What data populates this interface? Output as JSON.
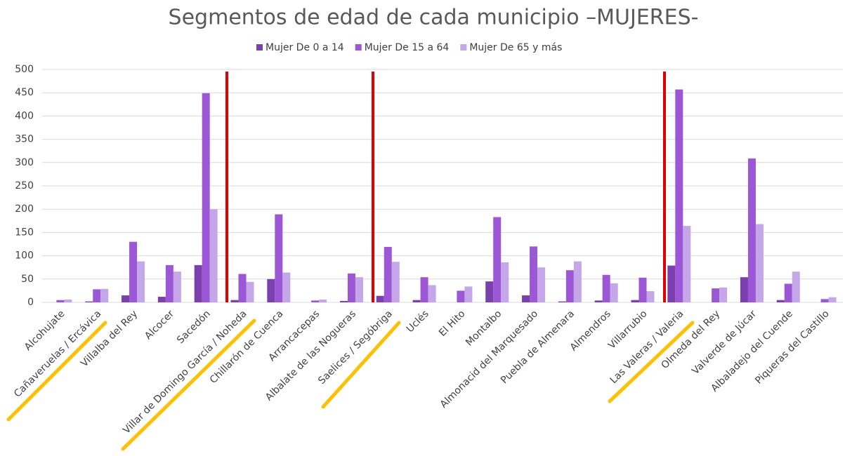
{
  "chart_data": {
    "type": "bar",
    "title": "Segmentos de edad de cada municipio –MUJERES-",
    "categories": [
      "Alcohujate",
      "Cañaveruelas / Ercávica",
      "Villalba del Rey",
      "Alcocer",
      "Sacedón",
      "Villar de Domingo García / Noheda",
      "Chillarón de Cuenca",
      "Arrancacepas",
      "Albalate de las Nogueras",
      "Saelices / Segóbriga",
      "Uclés",
      "El Hito",
      "Montalbo",
      "Almonacid del Marquesado",
      "Puebla de Almenara",
      "Almendros",
      "Villarrubio",
      "Las Valeras / Valeria",
      "Olmeda del Rey",
      "Valverde de Júcar",
      "Albaladejo del Cuende",
      "Piqueras del Castillo"
    ],
    "series": [
      {
        "name": "Mujer  De 0 a 14",
        "color": "#7b3fae",
        "values": [
          0,
          2,
          15,
          12,
          80,
          5,
          50,
          0,
          3,
          14,
          5,
          0,
          45,
          15,
          2,
          4,
          5,
          79,
          0,
          54,
          5,
          0
        ]
      },
      {
        "name": "Mujer  De 15 a 64",
        "color": "#9b57d6",
        "values": [
          5,
          28,
          130,
          80,
          449,
          61,
          189,
          4,
          62,
          119,
          54,
          25,
          183,
          120,
          69,
          59,
          53,
          457,
          30,
          309,
          40,
          7
        ]
      },
      {
        "name": "Mujer  De 65 y más",
        "color": "#c5a6e9",
        "values": [
          6,
          29,
          88,
          66,
          200,
          44,
          64,
          6,
          54,
          87,
          37,
          34,
          86,
          75,
          88,
          41,
          24,
          164,
          32,
          168,
          66,
          11
        ]
      }
    ],
    "ylim": [
      0,
      500
    ],
    "yticks": [
      0,
      50,
      100,
      150,
      200,
      250,
      300,
      350,
      400,
      450,
      500
    ],
    "grid": true,
    "legend": "top"
  }
}
